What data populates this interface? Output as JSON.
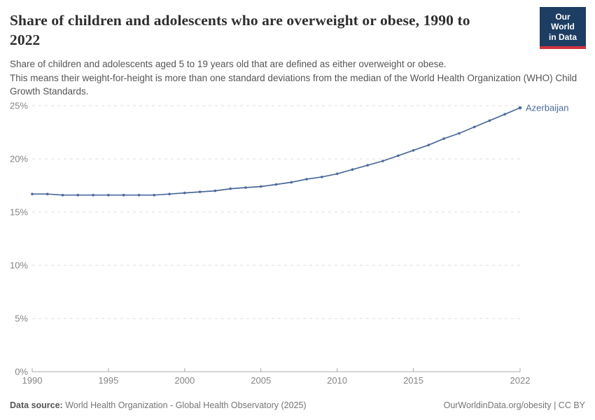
{
  "header": {
    "title": "Share of children and adolescents who are overweight or obese, 1990 to 2022",
    "subtitle_line1": "Share of children and adolescents aged 5 to 19 years old that are defined as either overweight or obese.",
    "subtitle_line2": "This means their weight-for-height is more than one standard deviations from the median of the World Health Organization (WHO) Child Growth Standards.",
    "logo": {
      "line1": "Our World",
      "line2": "in Data",
      "bg_color": "#1d3d63",
      "accent_color": "#d0333e"
    }
  },
  "chart_data": {
    "type": "line",
    "title": "Share of children and adolescents who are overweight or obese, 1990 to 2022",
    "xlabel": "",
    "ylabel": "",
    "ylim": [
      0,
      25
    ],
    "yticks": [
      0,
      5,
      10,
      15,
      20,
      25
    ],
    "yticklabels": [
      "0%",
      "5%",
      "10%",
      "15%",
      "20%",
      "25%"
    ],
    "xticks": [
      1990,
      1995,
      2000,
      2005,
      2010,
      2015,
      2022
    ],
    "xticklabels": [
      "1990",
      "1995",
      "2000",
      "2005",
      "2010",
      "2015",
      "2022"
    ],
    "grid": "horizontal-dashed",
    "legend_position": "end-of-line",
    "x": [
      1990,
      1991,
      1992,
      1993,
      1994,
      1995,
      1996,
      1997,
      1998,
      1999,
      2000,
      2001,
      2002,
      2003,
      2004,
      2005,
      2006,
      2007,
      2008,
      2009,
      2010,
      2011,
      2012,
      2013,
      2014,
      2015,
      2016,
      2017,
      2018,
      2019,
      2020,
      2021,
      2022
    ],
    "series": [
      {
        "name": "Azerbaijan",
        "color": "#4c6a9c",
        "values": [
          16.7,
          16.7,
          16.6,
          16.6,
          16.6,
          16.6,
          16.6,
          16.6,
          16.6,
          16.7,
          16.8,
          16.9,
          17.0,
          17.2,
          17.3,
          17.4,
          17.6,
          17.8,
          18.1,
          18.3,
          18.6,
          19.0,
          19.4,
          19.8,
          20.3,
          20.8,
          21.3,
          21.9,
          22.4,
          23.0,
          23.6,
          24.2,
          24.8
        ]
      }
    ],
    "colors": {
      "gridline": "#dcdcdc",
      "axis": "#a8a8a8",
      "tick_label": "#858585"
    }
  },
  "footer": {
    "datasource_label": "Data source:",
    "datasource_text": "World Health Organization - Global Health Observatory (2025)",
    "license_text": "OurWorldinData.org/obesity | CC BY"
  }
}
